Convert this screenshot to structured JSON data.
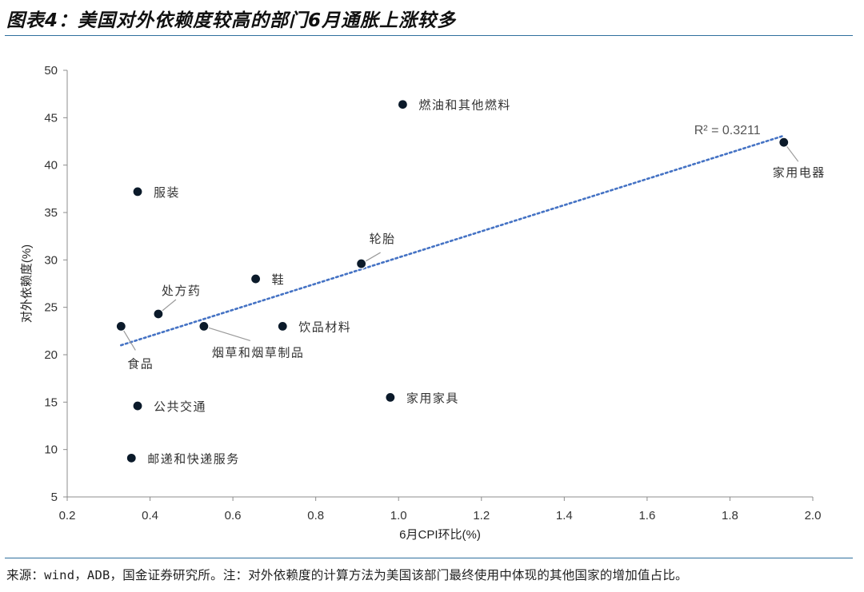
{
  "header": {
    "title": "图表4：美国对外依赖度较高的部门6月通胀上涨较多"
  },
  "footer": {
    "source": "来源：wind，ADB，国金证券研究所。注：对外依赖度的计算方法为美国该部门最终使用中体现的其他国家的增加值占比。"
  },
  "chart_data": {
    "type": "scatter",
    "title": "",
    "xlabel": "6月CPI环比(%)",
    "ylabel": "对外依赖度(%)",
    "xlim": [
      0.2,
      2.0
    ],
    "ylim": [
      5,
      50
    ],
    "xticks": [
      "0.2",
      "0.4",
      "0.6",
      "0.8",
      "1.0",
      "1.2",
      "1.4",
      "1.6",
      "1.8",
      "2.0"
    ],
    "yticks": [
      "5",
      "10",
      "15",
      "20",
      "25",
      "30",
      "35",
      "40",
      "45",
      "50"
    ],
    "grid": false,
    "points": [
      {
        "label": "燃油和其他燃料",
        "x": 1.01,
        "y": 46.4
      },
      {
        "label": "家用电器",
        "x": 1.93,
        "y": 42.4
      },
      {
        "label": "服装",
        "x": 0.37,
        "y": 37.2
      },
      {
        "label": "轮胎",
        "x": 0.91,
        "y": 29.6
      },
      {
        "label": "鞋",
        "x": 0.655,
        "y": 28.0
      },
      {
        "label": "处方药",
        "x": 0.42,
        "y": 24.3
      },
      {
        "label": "食品",
        "x": 0.33,
        "y": 23.0
      },
      {
        "label": "烟草和烟草制品",
        "x": 0.53,
        "y": 23.0
      },
      {
        "label": "饮品材料",
        "x": 0.72,
        "y": 23.0
      },
      {
        "label": "家用家具",
        "x": 0.98,
        "y": 15.5
      },
      {
        "label": "公共交通",
        "x": 0.37,
        "y": 14.6
      },
      {
        "label": "邮递和快递服务",
        "x": 0.355,
        "y": 9.1
      }
    ],
    "trendline": {
      "type": "linear",
      "x": [
        0.33,
        1.93
      ],
      "y": [
        21.0,
        43.1
      ],
      "color": "#4472c4"
    },
    "r_squared_label": "R² = 0.3211",
    "marker_fill": "#0b1a2a"
  }
}
